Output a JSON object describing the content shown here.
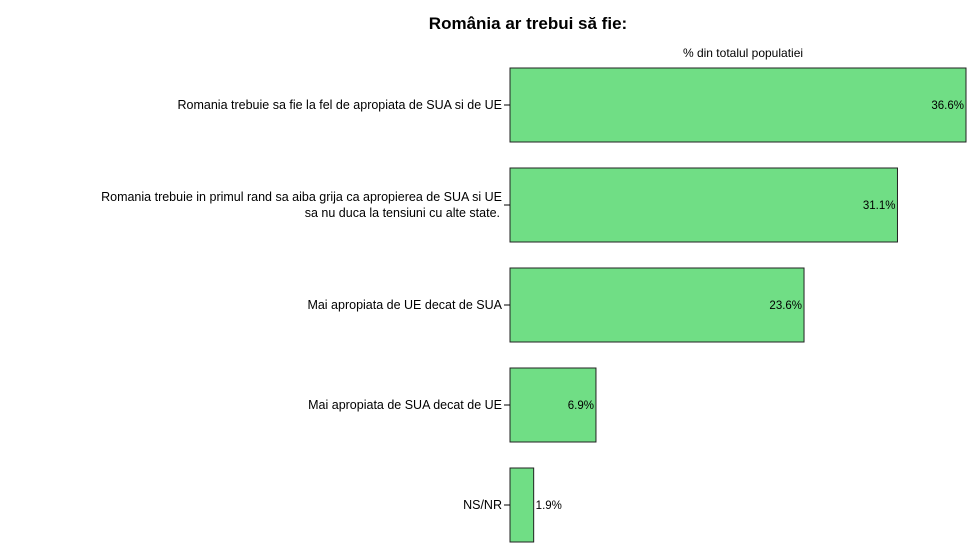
{
  "chart_data": {
    "type": "bar",
    "orientation": "horizontal",
    "title": "România ar trebui să fie:",
    "xlabel": "% din totalul populatiei",
    "ylabel": "",
    "categories": [
      [
        "Romania trebuie sa fie la fel de apropiata de SUA si de UE"
      ],
      [
        "Romania trebuie in primul rand sa aiba grija ca apropierea de SUA si UE",
        "sa nu duca la tensiuni cu alte state."
      ],
      [
        "Mai apropiata de UE decat de SUA"
      ],
      [
        "Mai apropiata de SUA decat de UE"
      ],
      [
        "NS/NR"
      ]
    ],
    "values": [
      36.6,
      31.1,
      23.6,
      6.9,
      1.9
    ],
    "value_labels": [
      "36.6%",
      "31.1%",
      "23.6%",
      "6.9%",
      "1.9%"
    ],
    "xlim": [
      0,
      36.6
    ],
    "bar_color": "#70de85",
    "bar_border_color": "#222222",
    "grid": false
  }
}
